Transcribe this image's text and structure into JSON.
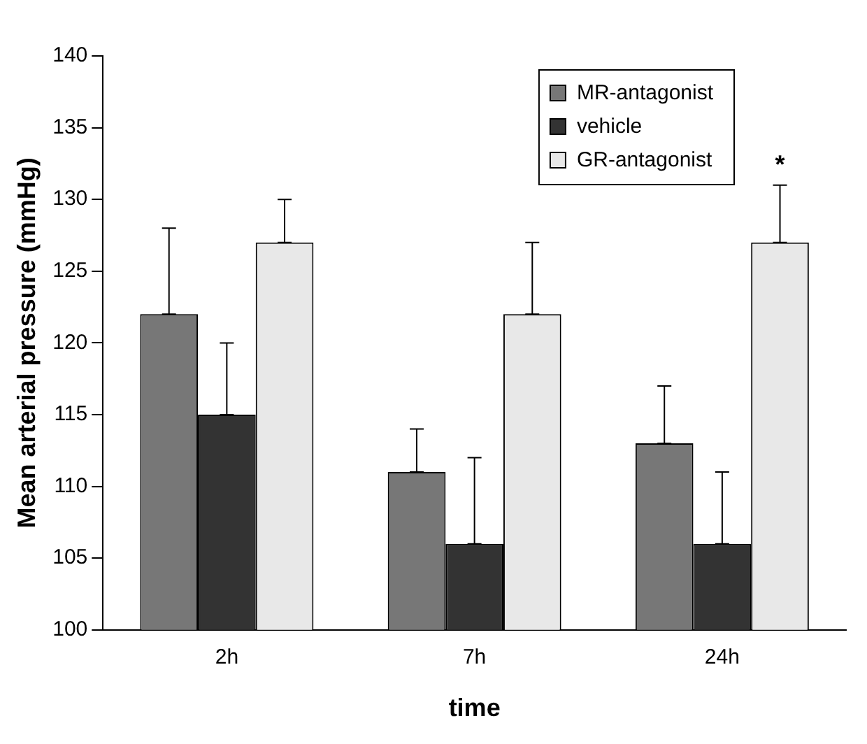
{
  "chart_data": {
    "type": "bar",
    "xlabel": "time",
    "ylabel": "Mean arterial pressure (mmHg)",
    "categories": [
      "2h",
      "7h",
      "24h"
    ],
    "series": [
      {
        "name": "MR-antagonist",
        "color": "#777777",
        "values": [
          122,
          111,
          113
        ],
        "errors": [
          [
            122,
            128
          ],
          [
            111,
            114
          ],
          [
            113,
            117
          ]
        ]
      },
      {
        "name": "vehicle",
        "color": "#333333",
        "values": [
          115,
          106,
          106
        ],
        "errors": [
          [
            115,
            120
          ],
          [
            106,
            112
          ],
          [
            106,
            111
          ]
        ]
      },
      {
        "name": "GR-antagonist",
        "color": "#e8e8e8",
        "values": [
          127,
          122,
          127
        ],
        "errors": [
          [
            127,
            130
          ],
          [
            122,
            127
          ],
          [
            127,
            131
          ]
        ]
      }
    ],
    "ylim": [
      100,
      140
    ],
    "yticks": [
      100,
      105,
      110,
      115,
      120,
      125,
      130,
      135,
      140
    ],
    "annotations": [
      "*"
    ],
    "legend": "top right",
    "grid": false
  }
}
